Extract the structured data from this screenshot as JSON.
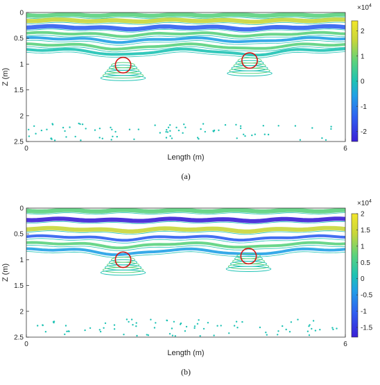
{
  "palette": [
    "#3a1fd6",
    "#2f5ff0",
    "#21a0e6",
    "#1ec2b4",
    "#5ad27e",
    "#c8d63a",
    "#f2e62b"
  ],
  "chart_data": [
    {
      "type": "heatmap",
      "panel_label": "(a)",
      "title": "",
      "xlabel": "Length (m)",
      "ylabel": "Z (m)",
      "xlim": [
        0,
        6
      ],
      "ylim": [
        0,
        2.5
      ],
      "y_reversed": true,
      "xticks": [
        "0",
        "6"
      ],
      "yticks": [
        "0",
        "0.5",
        "1",
        "1.5",
        "2",
        "2.5"
      ],
      "colorbar": {
        "multiplier": "×10",
        "exponent": "4",
        "range": [
          -2.4,
          2.4
        ],
        "ticks": [
          "2",
          "1",
          "0",
          "-1",
          "-2"
        ]
      },
      "bands": [
        {
          "depth": 0.05,
          "value": 0.6
        },
        {
          "depth": 0.15,
          "value": 1.8
        },
        {
          "depth": 0.28,
          "value": -1.9
        },
        {
          "depth": 0.4,
          "value": 0.9
        },
        {
          "depth": 0.5,
          "value": -0.8
        },
        {
          "depth": 0.62,
          "value": 0.5
        },
        {
          "depth": 0.72,
          "value": -0.3
        }
      ],
      "annotations": [
        {
          "shape": "circle",
          "x": 1.82,
          "y": 1.02,
          "r": 0.2
        },
        {
          "shape": "circle",
          "x": 4.2,
          "y": 0.93,
          "r": 0.2
        }
      ]
    },
    {
      "type": "heatmap",
      "panel_label": "(b)",
      "title": "",
      "xlabel": "Length (m)",
      "ylabel": "Z (m)",
      "xlim": [
        0,
        6
      ],
      "ylim": [
        0,
        2.5
      ],
      "y_reversed": true,
      "xticks": [
        "0",
        "6"
      ],
      "yticks": [
        "0",
        "0.5",
        "1",
        "1.5",
        "2",
        "2.5"
      ],
      "colorbar": {
        "multiplier": "×10",
        "exponent": "4",
        "range": [
          -1.8,
          2.0
        ],
        "ticks": [
          "2",
          "1.5",
          "1",
          "0.5",
          "0",
          "-0.5",
          "-1",
          "-1.5"
        ]
      },
      "bands": [
        {
          "depth": 0.05,
          "value": 0.5
        },
        {
          "depth": 0.22,
          "value": -1.5
        },
        {
          "depth": 0.4,
          "value": 1.6
        },
        {
          "depth": 0.55,
          "value": -1.0
        },
        {
          "depth": 0.68,
          "value": 0.6
        },
        {
          "depth": 0.8,
          "value": -0.4
        }
      ],
      "annotations": [
        {
          "shape": "circle",
          "x": 1.82,
          "y": 1.0,
          "r": 0.2
        },
        {
          "shape": "circle",
          "x": 4.18,
          "y": 0.93,
          "r": 0.2
        }
      ]
    }
  ]
}
